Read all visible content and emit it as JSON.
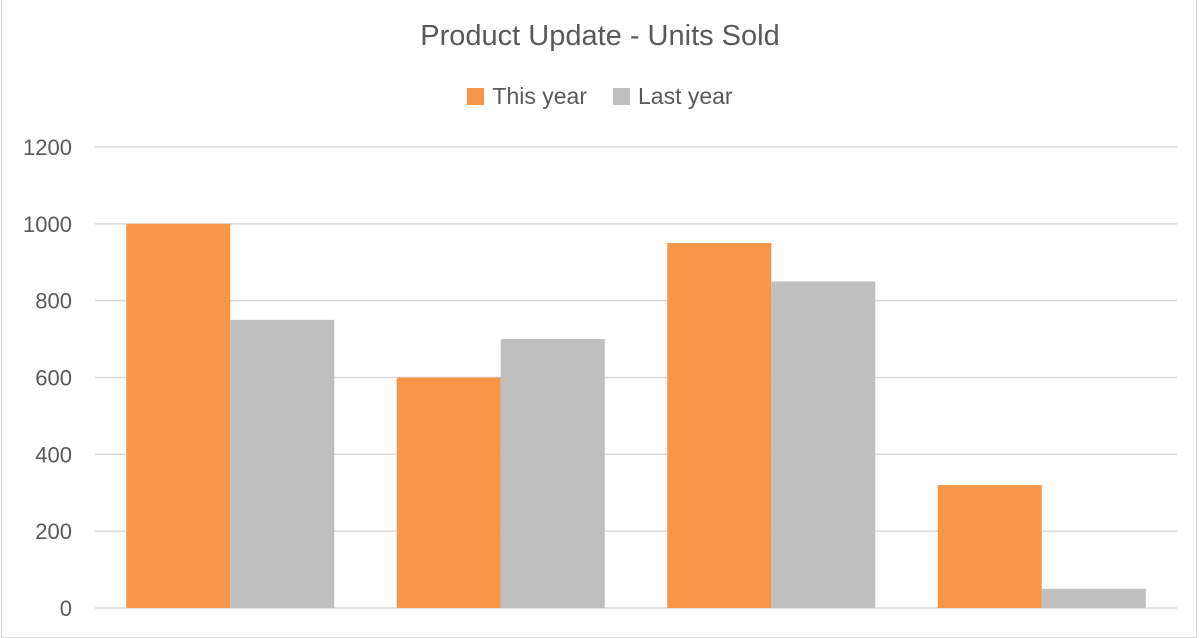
{
  "chart_data": {
    "type": "bar",
    "title": "Product Update - Units Sold",
    "categories": [
      "",
      "",
      "",
      ""
    ],
    "series": [
      {
        "name": "This year",
        "color": "#F79646",
        "values": [
          1000,
          600,
          950,
          320
        ]
      },
      {
        "name": "Last year",
        "color": "#BFBFBF",
        "values": [
          750,
          700,
          850,
          50
        ]
      }
    ],
    "ylim": [
      0,
      1200
    ],
    "yticks": [
      0,
      200,
      400,
      600,
      800,
      1000,
      1200
    ],
    "grid": true,
    "legend": "top"
  }
}
